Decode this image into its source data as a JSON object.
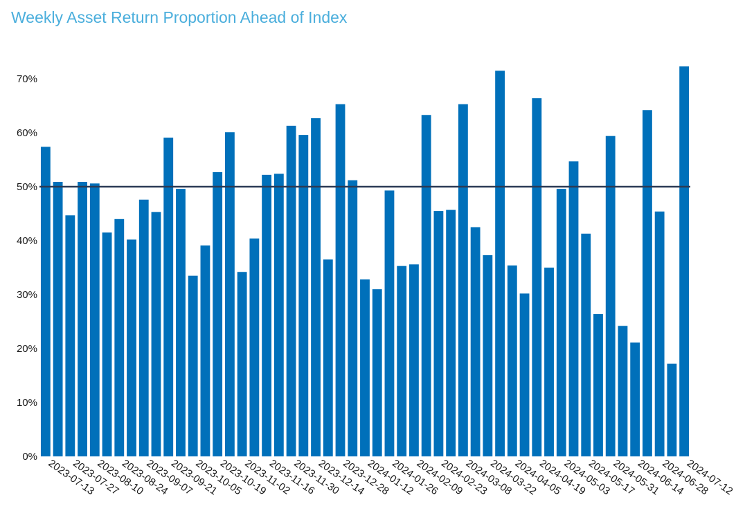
{
  "chart_data": {
    "type": "bar",
    "title": "Weekly Asset Return Proportion Ahead of Index",
    "xlabel": "",
    "ylabel": "",
    "ylim": [
      0,
      75
    ],
    "yticks": [
      0,
      10,
      20,
      30,
      40,
      50,
      60,
      70
    ],
    "ytick_labels": [
      "0%",
      "10%",
      "20%",
      "30%",
      "40%",
      "50%",
      "60%",
      "70%"
    ],
    "reference_line": 50,
    "grid": false,
    "bar_color": "#0070ba",
    "reference_line_color": "#2b3a55",
    "categories": [
      "2023-07-13",
      "2023-07-20",
      "2023-07-27",
      "2023-08-03",
      "2023-08-10",
      "2023-08-17",
      "2023-08-24",
      "2023-08-31",
      "2023-09-07",
      "2023-09-14",
      "2023-09-21",
      "2023-09-28",
      "2023-10-05",
      "2023-10-12",
      "2023-10-19",
      "2023-10-26",
      "2023-11-02",
      "2023-11-09",
      "2023-11-16",
      "2023-11-23",
      "2023-11-30",
      "2023-12-07",
      "2023-12-14",
      "2023-12-21",
      "2023-12-28",
      "2024-01-04",
      "2024-01-12",
      "2024-01-19",
      "2024-01-26",
      "2024-02-02",
      "2024-02-09",
      "2024-02-16",
      "2024-02-23",
      "2024-03-01",
      "2024-03-08",
      "2024-03-15",
      "2024-03-22",
      "2024-03-29",
      "2024-04-05",
      "2024-04-12",
      "2024-04-19",
      "2024-04-26",
      "2024-05-03",
      "2024-05-10",
      "2024-05-17",
      "2024-05-24",
      "2024-05-31",
      "2024-06-07",
      "2024-06-14",
      "2024-06-21",
      "2024-06-28",
      "2024-07-05",
      "2024-07-12"
    ],
    "x_tick_labels": [
      "2023-07-13",
      "2023-07-27",
      "2023-08-10",
      "2023-08-24",
      "2023-09-07",
      "2023-09-21",
      "2023-10-05",
      "2023-10-19",
      "2023-11-02",
      "2023-11-16",
      "2023-11-30",
      "2023-12-14",
      "2023-12-28",
      "2024-01-12",
      "2024-01-26",
      "2024-02-09",
      "2024-02-23",
      "2024-03-08",
      "2024-03-22",
      "2024-04-05",
      "2024-04-19",
      "2024-05-03",
      "2024-05-17",
      "2024-05-31",
      "2024-06-14",
      "2024-06-28",
      "2024-07-12"
    ],
    "values": [
      57.4,
      50.9,
      44.7,
      50.9,
      50.6,
      41.5,
      44.0,
      40.2,
      47.6,
      45.3,
      59.1,
      49.6,
      33.5,
      39.1,
      52.7,
      60.1,
      34.2,
      40.4,
      52.2,
      52.4,
      61.3,
      59.6,
      62.7,
      36.5,
      65.3,
      51.2,
      32.8,
      31.0,
      49.3,
      35.3,
      35.6,
      63.3,
      45.5,
      45.7,
      65.3,
      42.5,
      37.3,
      71.5,
      35.4,
      30.2,
      66.4,
      35.0,
      49.6,
      54.7,
      41.3,
      26.4,
      59.4,
      24.2,
      21.1,
      64.2,
      45.4,
      17.2,
      72.3
    ]
  }
}
